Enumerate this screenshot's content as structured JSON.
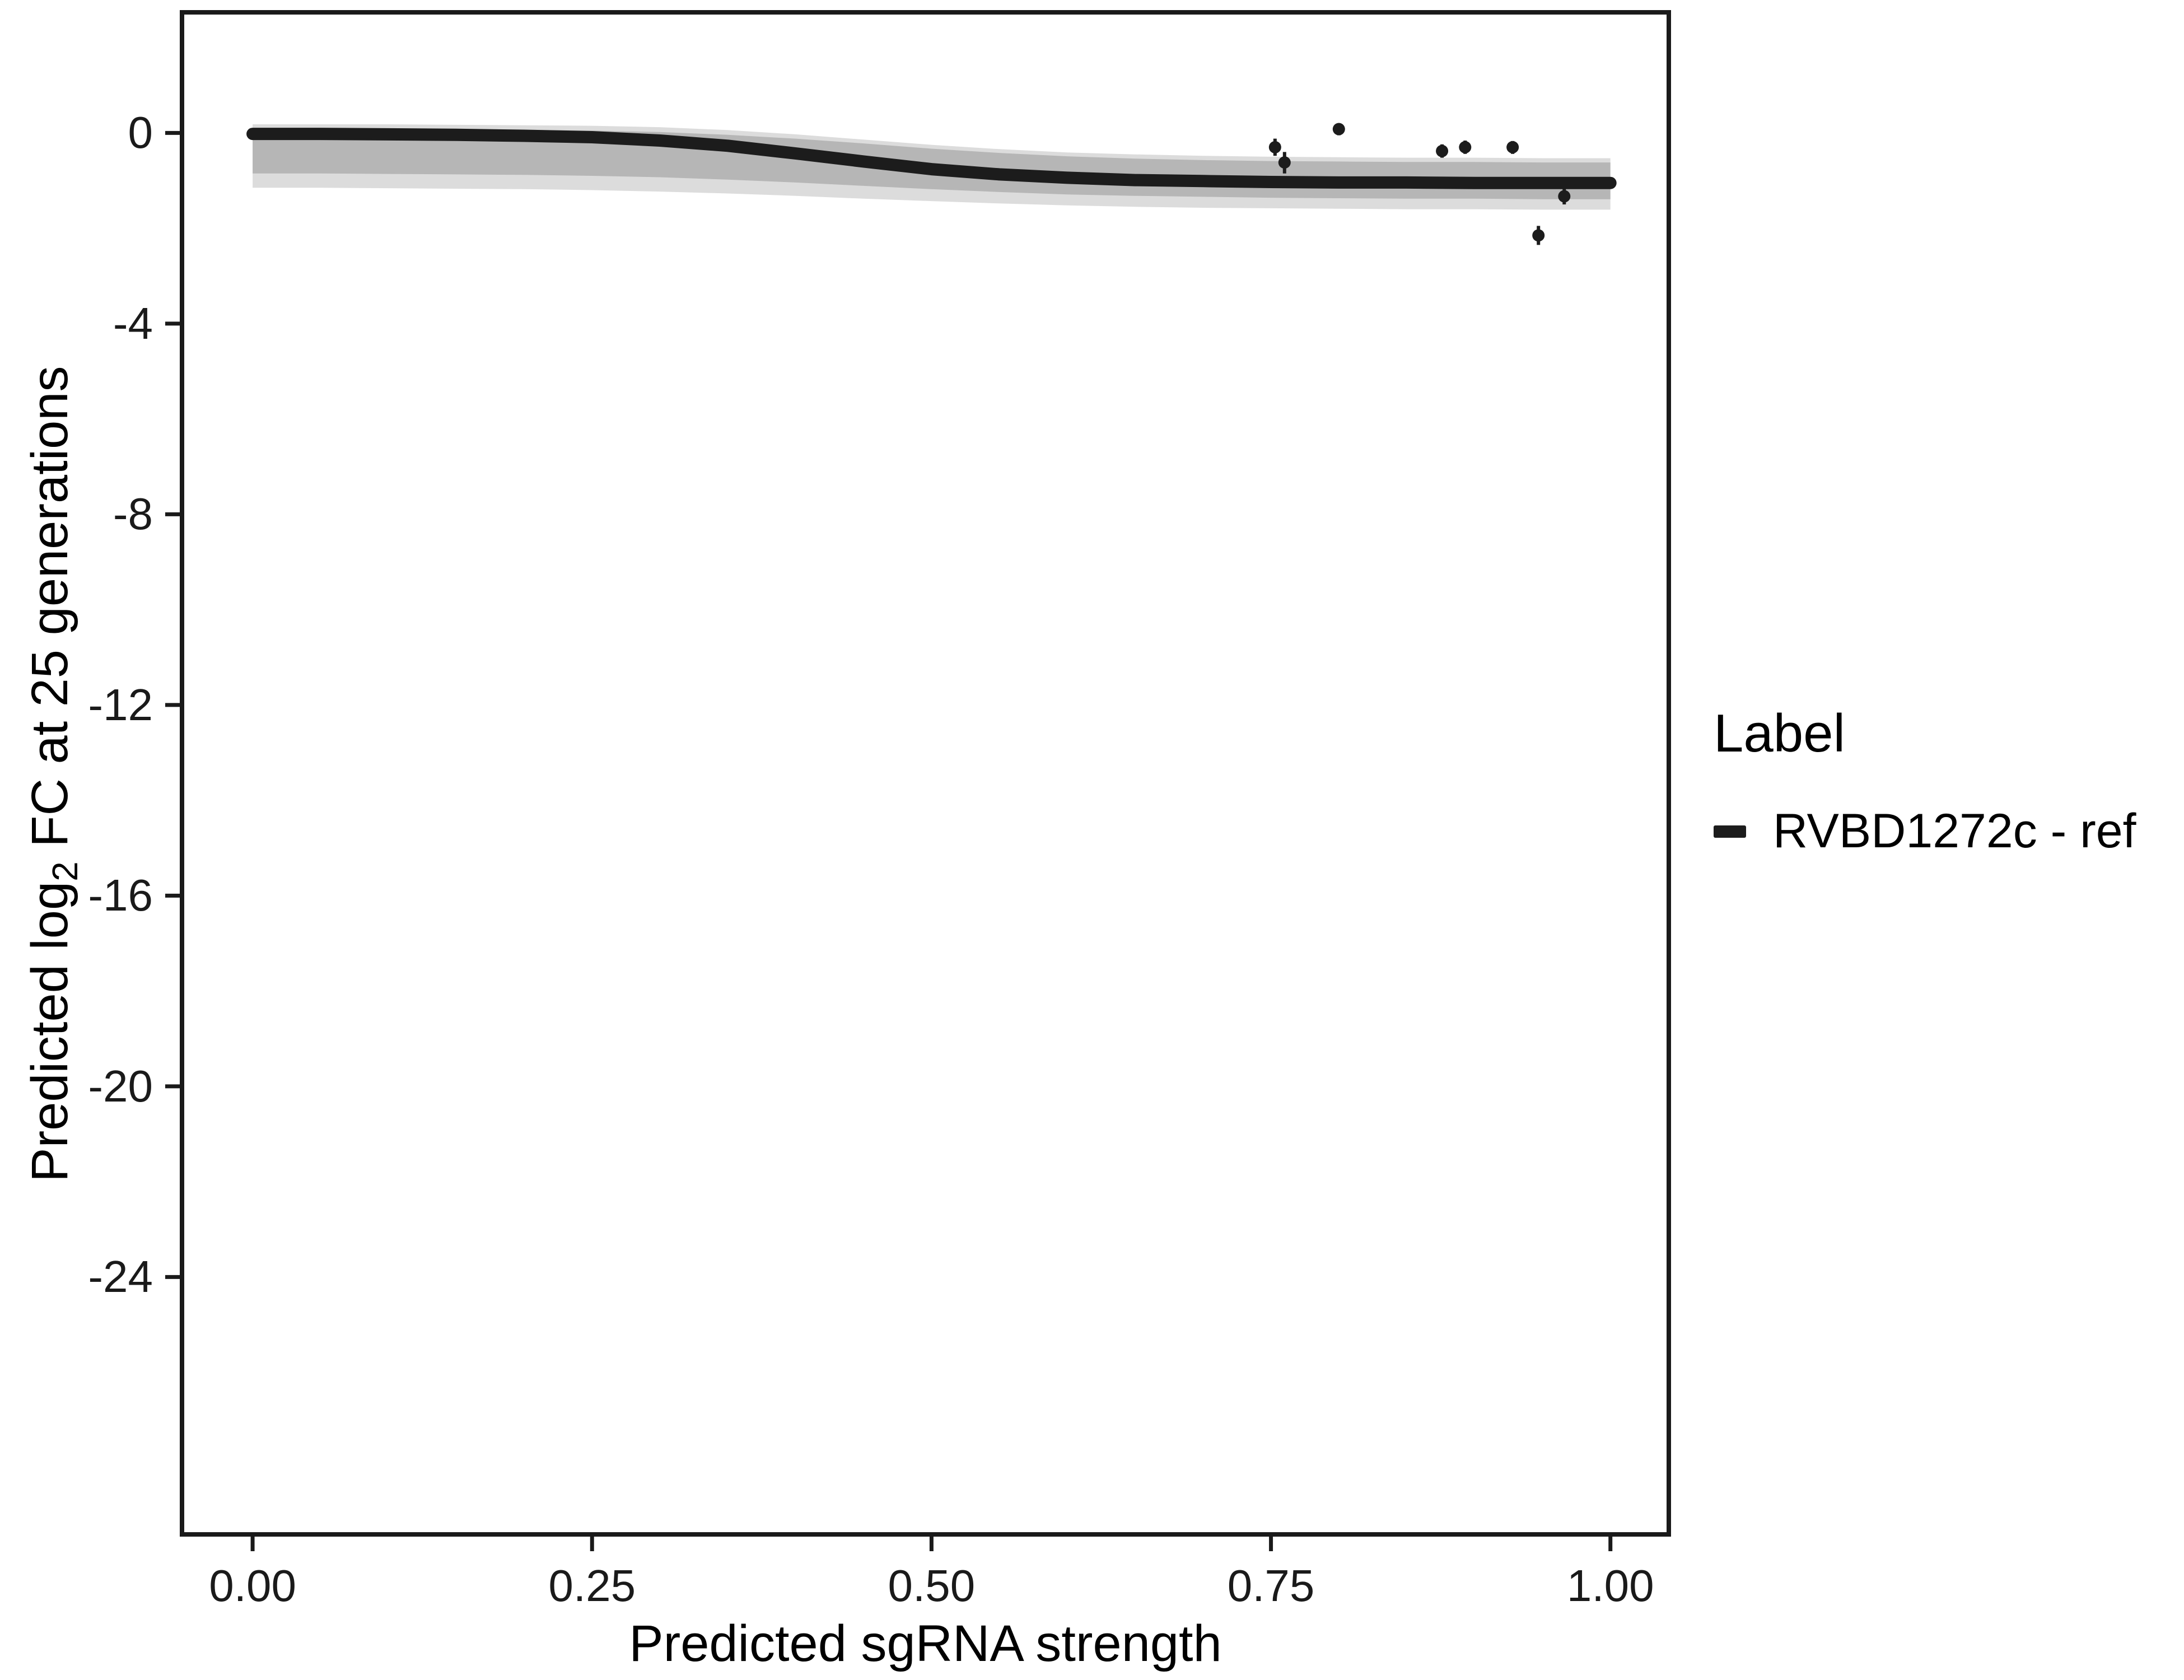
{
  "figure": {
    "background": "#ffffff"
  },
  "axes": {
    "x_label": "Predicted sgRNA strength",
    "y_label": "Predicted log2 FC at 25 generations",
    "y_label_parts": {
      "prefix": "Predicted  log",
      "sub": "2",
      "suffix": " FC at 25 generations"
    }
  },
  "legend": {
    "title": "Label",
    "entries": [
      {
        "label": "RVBD1272c - ref",
        "color": "#1c1c1c"
      }
    ]
  },
  "chart_data": {
    "type": "line",
    "title": "",
    "xlabel": "Predicted sgRNA strength",
    "ylabel": "Predicted log2 FC at 25 generations",
    "xlim": [
      -0.052,
      1.043
    ],
    "ylim": [
      -29.4,
      2.53
    ],
    "x_ticks": [
      0,
      0.25,
      0.5,
      0.75,
      1.0
    ],
    "x_tick_labels": [
      "0.00",
      "0.25",
      "0.50",
      "0.75",
      "1.00"
    ],
    "y_ticks": [
      0,
      -4,
      -8,
      -12,
      -16,
      -20,
      -24
    ],
    "y_tick_labels": [
      "0",
      "-4",
      "-8",
      "-12",
      "-16",
      "-20",
      "-24"
    ],
    "grid": false,
    "legend_position": "right",
    "panel_border_color": "#1a1a1a",
    "series": [
      {
        "name": "RVBD1272c - ref",
        "color": "#1c1c1c",
        "x": [
          0,
          0.05,
          0.1,
          0.15,
          0.2,
          0.25,
          0.3,
          0.35,
          0.4,
          0.45,
          0.5,
          0.55,
          0.6,
          0.65,
          0.7,
          0.75,
          0.8,
          0.85,
          0.9,
          0.95,
          1.0
        ],
        "y": [
          -0.02,
          -0.02,
          -0.03,
          -0.04,
          -0.06,
          -0.09,
          -0.16,
          -0.27,
          -0.43,
          -0.6,
          -0.76,
          -0.87,
          -0.94,
          -0.99,
          -1.01,
          -1.03,
          -1.04,
          -1.04,
          -1.05,
          -1.05,
          -1.05
        ]
      }
    ],
    "bands": [
      {
        "name": "credible-band-outer",
        "color": "#c9c9c9",
        "opacity": 0.65,
        "x": [
          0,
          0.05,
          0.1,
          0.15,
          0.2,
          0.25,
          0.3,
          0.35,
          0.4,
          0.45,
          0.5,
          0.55,
          0.6,
          0.65,
          0.7,
          0.75,
          0.8,
          0.85,
          0.9,
          0.95,
          1.0
        ],
        "upper": [
          0.18,
          0.18,
          0.18,
          0.17,
          0.16,
          0.15,
          0.12,
          0.06,
          -0.03,
          -0.14,
          -0.25,
          -0.34,
          -0.41,
          -0.45,
          -0.48,
          -0.5,
          -0.51,
          -0.52,
          -0.52,
          -0.53,
          -0.53
        ],
        "lower": [
          -1.15,
          -1.15,
          -1.16,
          -1.17,
          -1.18,
          -1.2,
          -1.23,
          -1.27,
          -1.32,
          -1.38,
          -1.43,
          -1.48,
          -1.52,
          -1.55,
          -1.57,
          -1.58,
          -1.59,
          -1.6,
          -1.6,
          -1.61,
          -1.61
        ]
      },
      {
        "name": "credible-band-inner",
        "color": "#a5a5a5",
        "opacity": 0.7,
        "x": [
          0,
          0.05,
          0.1,
          0.15,
          0.2,
          0.25,
          0.3,
          0.35,
          0.4,
          0.45,
          0.5,
          0.55,
          0.6,
          0.65,
          0.7,
          0.75,
          0.8,
          0.85,
          0.9,
          0.95,
          1.0
        ],
        "upper": [
          0.08,
          0.08,
          0.08,
          0.07,
          0.06,
          0.05,
          0.02,
          -0.04,
          -0.12,
          -0.22,
          -0.33,
          -0.42,
          -0.49,
          -0.54,
          -0.57,
          -0.59,
          -0.6,
          -0.61,
          -0.61,
          -0.62,
          -0.62
        ],
        "lower": [
          -0.85,
          -0.85,
          -0.86,
          -0.87,
          -0.88,
          -0.9,
          -0.93,
          -0.98,
          -1.04,
          -1.11,
          -1.18,
          -1.24,
          -1.29,
          -1.32,
          -1.34,
          -1.36,
          -1.37,
          -1.38,
          -1.38,
          -1.39,
          -1.39
        ]
      }
    ],
    "points": [
      {
        "x": 0.753,
        "y": -0.3,
        "ymin": -0.48,
        "ymax": -0.12
      },
      {
        "x": 0.76,
        "y": -0.62,
        "ymin": -0.85,
        "ymax": -0.4
      },
      {
        "x": 0.8,
        "y": 0.08,
        "ymin": -0.05,
        "ymax": 0.2
      },
      {
        "x": 0.876,
        "y": -0.38,
        "ymin": -0.52,
        "ymax": -0.24
      },
      {
        "x": 0.893,
        "y": -0.3,
        "ymin": -0.44,
        "ymax": -0.16
      },
      {
        "x": 0.928,
        "y": -0.3,
        "ymin": -0.44,
        "ymax": -0.17
      },
      {
        "x": 0.947,
        "y": -2.15,
        "ymin": -2.35,
        "ymax": -1.95
      },
      {
        "x": 0.966,
        "y": -1.33,
        "ymin": -1.5,
        "ymax": -1.16
      }
    ]
  }
}
